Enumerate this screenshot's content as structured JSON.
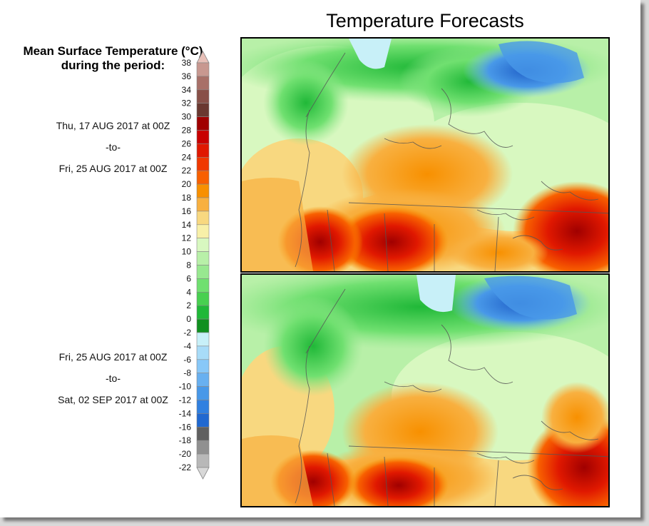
{
  "title": "Temperature Forecasts",
  "legend": {
    "title_line1": "Mean Surface Temperature (°C)",
    "title_line2": "during the period:",
    "ticks": [
      "38",
      "36",
      "34",
      "32",
      "30",
      "28",
      "26",
      "24",
      "22",
      "20",
      "18",
      "16",
      "14",
      "12",
      "10",
      "8",
      "6",
      "4",
      "2",
      "0",
      "-2",
      "-4",
      "-6",
      "-8",
      "-10",
      "-12",
      "-14",
      "-16",
      "-18",
      "-20",
      "-22"
    ],
    "colors": [
      "#e8c0b8",
      "#c89890",
      "#a87068",
      "#885048",
      "#6a3830",
      "#a00000",
      "#c80000",
      "#e01800",
      "#f03800",
      "#f86000",
      "#f89000",
      "#f8b040",
      "#f8d880",
      "#f8f0a8",
      "#d8f8c0",
      "#b8f0a8",
      "#98e890",
      "#70e070",
      "#48d050",
      "#20b838",
      "#109020",
      "#c8f0f8",
      "#a8dcf8",
      "#88c8f8",
      "#68b0f0",
      "#4898e8",
      "#3080e0",
      "#2068d0",
      "#606060",
      "#909090",
      "#b8b8b8",
      "#d8d8d8"
    ]
  },
  "periods": [
    {
      "start": "Thu, 17 AUG 2017 at 00Z",
      "to": "-to-",
      "end": "Fri, 25 AUG 2017 at 00Z"
    },
    {
      "start": "Fri, 25 AUG 2017 at 00Z",
      "to": "-to-",
      "end": "Sat, 02 SEP 2017 at 00Z"
    }
  ]
}
